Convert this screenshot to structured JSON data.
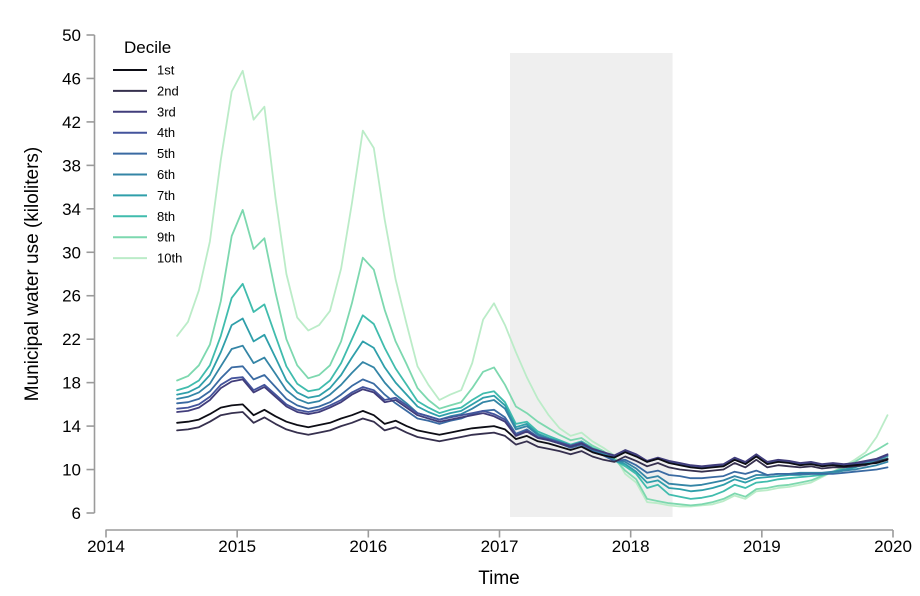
{
  "legend": {
    "title": "Decile"
  },
  "chart_data": {
    "type": "line",
    "title": "",
    "xlabel": "Time",
    "ylabel": "Municipal water use (kiloliters)",
    "xlim": [
      2014,
      2020
    ],
    "ylim": [
      6,
      50
    ],
    "x_ticks": [
      2014,
      2015,
      2016,
      2017,
      2018,
      2019,
      2020
    ],
    "y_ticks": [
      6,
      10,
      14,
      18,
      22,
      26,
      30,
      34,
      38,
      42,
      46,
      50
    ],
    "grid": false,
    "legend_position": "top-left-inside",
    "shaded_region": {
      "x_from": 2017.08,
      "x_to": 2018.32,
      "color": "#efefef"
    },
    "x": [
      2014.542,
      2014.625,
      2014.708,
      2014.792,
      2014.875,
      2014.958,
      2015.042,
      2015.125,
      2015.208,
      2015.292,
      2015.375,
      2015.458,
      2015.542,
      2015.625,
      2015.708,
      2015.792,
      2015.875,
      2015.958,
      2016.042,
      2016.125,
      2016.208,
      2016.292,
      2016.375,
      2016.458,
      2016.542,
      2016.625,
      2016.708,
      2016.792,
      2016.875,
      2016.958,
      2017.042,
      2017.125,
      2017.208,
      2017.292,
      2017.375,
      2017.458,
      2017.542,
      2017.625,
      2017.708,
      2017.792,
      2017.875,
      2017.958,
      2018.042,
      2018.125,
      2018.208,
      2018.292,
      2018.375,
      2018.458,
      2018.542,
      2018.625,
      2018.708,
      2018.792,
      2018.875,
      2018.958,
      2019.042,
      2019.125,
      2019.208,
      2019.292,
      2019.375,
      2019.458,
      2019.542,
      2019.625,
      2019.708,
      2019.792,
      2019.875,
      2019.958
    ],
    "series": [
      {
        "name": "1st",
        "color": "#0d0d15",
        "values": [
          14.3,
          14.4,
          14.6,
          15.1,
          15.7,
          15.9,
          16.0,
          15.0,
          15.5,
          14.9,
          14.4,
          14.1,
          13.9,
          14.1,
          14.3,
          14.7,
          15.0,
          15.4,
          15.0,
          14.2,
          14.5,
          14.0,
          13.6,
          13.4,
          13.2,
          13.4,
          13.6,
          13.8,
          13.9,
          14.0,
          13.7,
          12.8,
          13.1,
          12.6,
          12.4,
          12.1,
          11.8,
          12.1,
          11.6,
          11.3,
          11.1,
          11.6,
          11.2,
          10.7,
          11.0,
          10.6,
          10.4,
          10.2,
          10.1,
          10.2,
          10.3,
          10.9,
          10.5,
          11.2,
          10.5,
          10.7,
          10.6,
          10.4,
          10.5,
          10.3,
          10.4,
          10.3,
          10.4,
          10.5,
          10.6,
          10.9
        ]
      },
      {
        "name": "2nd",
        "color": "#36304e",
        "values": [
          13.6,
          13.7,
          13.9,
          14.4,
          15.0,
          15.2,
          15.3,
          14.3,
          14.8,
          14.2,
          13.7,
          13.4,
          13.2,
          13.4,
          13.6,
          14.0,
          14.3,
          14.7,
          14.4,
          13.6,
          13.9,
          13.4,
          13.0,
          12.8,
          12.6,
          12.8,
          13.0,
          13.2,
          13.3,
          13.4,
          13.1,
          12.3,
          12.6,
          12.1,
          11.9,
          11.7,
          11.4,
          11.7,
          11.2,
          10.9,
          10.7,
          11.2,
          10.8,
          10.3,
          10.6,
          10.2,
          10.0,
          9.9,
          9.8,
          9.9,
          10.0,
          10.6,
          10.2,
          10.9,
          10.2,
          10.4,
          10.3,
          10.2,
          10.3,
          10.1,
          10.2,
          10.2,
          10.3,
          10.4,
          10.7,
          11.0
        ]
      },
      {
        "name": "3rd",
        "color": "#413d7b",
        "values": [
          15.3,
          15.4,
          15.7,
          16.4,
          17.5,
          18.1,
          18.3,
          17.1,
          17.6,
          16.7,
          15.8,
          15.3,
          15.1,
          15.3,
          15.7,
          16.2,
          16.9,
          17.4,
          17.1,
          16.2,
          16.4,
          15.7,
          15.0,
          14.7,
          14.4,
          14.6,
          14.8,
          15.0,
          15.2,
          14.9,
          14.4,
          13.1,
          13.5,
          12.9,
          12.7,
          12.4,
          12.1,
          12.4,
          11.9,
          11.6,
          11.3,
          11.8,
          11.4,
          10.8,
          11.1,
          10.8,
          10.6,
          10.4,
          10.3,
          10.4,
          10.5,
          11.1,
          10.7,
          11.4,
          10.7,
          10.9,
          10.8,
          10.6,
          10.7,
          10.5,
          10.6,
          10.5,
          10.6,
          10.8,
          11.0,
          11.4
        ]
      },
      {
        "name": "4th",
        "color": "#44549c",
        "values": [
          15.6,
          15.7,
          16.0,
          16.7,
          17.8,
          18.4,
          18.5,
          17.3,
          17.8,
          16.9,
          16.0,
          15.5,
          15.3,
          15.5,
          15.9,
          16.4,
          17.1,
          17.6,
          17.3,
          16.4,
          16.6,
          15.9,
          15.2,
          14.9,
          14.6,
          14.8,
          15.0,
          15.2,
          15.4,
          15.1,
          14.6,
          13.2,
          13.6,
          13.0,
          12.8,
          12.5,
          12.2,
          12.5,
          11.9,
          11.6,
          11.2,
          11.7,
          11.3,
          10.7,
          11.0,
          10.7,
          10.5,
          10.3,
          10.2,
          10.3,
          10.4,
          11.0,
          10.6,
          11.3,
          10.6,
          10.8,
          10.7,
          10.5,
          10.6,
          10.4,
          10.5,
          10.4,
          10.5,
          10.7,
          10.9,
          11.3
        ]
      },
      {
        "name": "5th",
        "color": "#3a6aa2",
        "values": [
          16.1,
          16.2,
          16.5,
          17.2,
          18.4,
          19.4,
          19.5,
          18.3,
          18.7,
          17.6,
          16.5,
          15.9,
          15.6,
          15.8,
          16.2,
          16.9,
          17.7,
          18.3,
          17.9,
          16.9,
          16.1,
          15.4,
          14.7,
          14.5,
          14.2,
          14.5,
          14.7,
          15.1,
          15.4,
          15.5,
          14.8,
          13.3,
          13.7,
          13.0,
          12.7,
          12.4,
          12.0,
          12.3,
          11.7,
          11.3,
          10.8,
          10.9,
          10.4,
          9.7,
          9.9,
          9.5,
          9.4,
          9.2,
          9.2,
          9.3,
          9.4,
          9.8,
          9.6,
          9.9,
          9.5,
          9.6,
          9.6,
          9.6,
          9.6,
          9.6,
          9.6,
          9.7,
          9.8,
          9.9,
          10.0,
          10.2
        ]
      },
      {
        "name": "6th",
        "color": "#3485a6",
        "values": [
          16.5,
          16.7,
          17.1,
          17.9,
          19.5,
          21.1,
          21.4,
          19.8,
          20.3,
          18.8,
          17.3,
          16.5,
          16.1,
          16.3,
          16.9,
          17.8,
          18.9,
          19.9,
          19.4,
          18.0,
          16.9,
          16.1,
          15.2,
          14.9,
          14.6,
          14.9,
          15.1,
          15.6,
          16.2,
          16.4,
          15.6,
          13.7,
          14.0,
          13.2,
          12.8,
          12.5,
          12.1,
          12.4,
          11.8,
          11.4,
          10.8,
          10.7,
          10.1,
          9.2,
          9.4,
          8.7,
          8.6,
          8.5,
          8.6,
          8.8,
          9.0,
          9.4,
          9.1,
          9.5,
          9.5,
          9.6,
          9.6,
          9.7,
          9.7,
          9.7,
          9.8,
          9.9,
          10.0,
          10.2,
          10.4,
          10.7
        ]
      },
      {
        "name": "7th",
        "color": "#2f9faa",
        "values": [
          16.9,
          17.1,
          17.6,
          18.7,
          20.8,
          23.3,
          23.9,
          21.8,
          22.4,
          20.3,
          18.2,
          17.1,
          16.6,
          16.8,
          17.5,
          18.7,
          20.3,
          21.8,
          21.2,
          19.4,
          18.0,
          16.9,
          15.8,
          15.3,
          14.9,
          15.2,
          15.4,
          16.0,
          16.6,
          16.8,
          15.9,
          13.9,
          14.2,
          13.3,
          12.9,
          12.6,
          12.2,
          12.5,
          11.9,
          11.5,
          10.8,
          10.5,
          9.8,
          8.8,
          9.0,
          8.3,
          8.2,
          8.0,
          8.1,
          8.3,
          8.6,
          9.1,
          8.8,
          9.2,
          9.3,
          9.4,
          9.5,
          9.5,
          9.6,
          9.6,
          9.8,
          10.0,
          10.2,
          10.5,
          10.8,
          11.0
        ]
      },
      {
        "name": "8th",
        "color": "#40bcad",
        "values": [
          17.3,
          17.6,
          18.2,
          19.6,
          22.3,
          25.8,
          27.1,
          24.5,
          25.2,
          22.3,
          19.5,
          17.9,
          17.2,
          17.4,
          18.2,
          19.8,
          22.0,
          24.2,
          23.4,
          21.2,
          19.3,
          17.8,
          16.3,
          15.7,
          15.2,
          15.5,
          15.7,
          16.4,
          17.0,
          17.2,
          16.2,
          14.2,
          14.4,
          13.5,
          13.1,
          12.7,
          12.3,
          12.6,
          12.0,
          11.6,
          10.9,
          10.3,
          9.6,
          8.3,
          8.6,
          7.7,
          7.5,
          7.3,
          7.4,
          7.6,
          8.0,
          8.6,
          8.3,
          8.8,
          8.9,
          9.1,
          9.2,
          9.3,
          9.4,
          9.5,
          9.7,
          9.9,
          10.2,
          10.6,
          10.9,
          11.2
        ]
      },
      {
        "name": "9th",
        "color": "#7dd8af",
        "values": [
          18.2,
          18.6,
          19.6,
          21.5,
          25.5,
          31.5,
          33.9,
          30.3,
          31.3,
          26.3,
          22.0,
          19.6,
          18.4,
          18.7,
          19.6,
          21.8,
          25.3,
          29.5,
          28.4,
          24.7,
          21.8,
          19.7,
          17.5,
          16.4,
          15.6,
          15.9,
          16.2,
          17.5,
          19.0,
          19.4,
          17.8,
          15.8,
          15.2,
          14.4,
          13.8,
          13.2,
          12.7,
          12.9,
          12.2,
          11.7,
          11.0,
          9.9,
          9.1,
          7.3,
          7.1,
          6.9,
          6.8,
          6.7,
          6.8,
          7.0,
          7.3,
          7.8,
          7.5,
          8.2,
          8.3,
          8.5,
          8.6,
          8.8,
          9.0,
          9.4,
          9.8,
          10.2,
          10.7,
          11.3,
          11.8,
          12.4
        ]
      },
      {
        "name": "10th",
        "color": "#bbecc8",
        "values": [
          22.3,
          23.6,
          26.5,
          31.0,
          38.5,
          44.8,
          46.7,
          42.2,
          43.4,
          35.0,
          28.0,
          24.0,
          22.8,
          23.3,
          24.6,
          28.5,
          34.5,
          41.2,
          39.6,
          33.0,
          27.5,
          23.4,
          19.5,
          17.8,
          16.4,
          16.9,
          17.3,
          19.8,
          23.8,
          25.3,
          23.3,
          20.8,
          18.5,
          16.5,
          15.0,
          13.8,
          13.1,
          13.4,
          12.6,
          12.0,
          11.3,
          9.6,
          8.8,
          7.0,
          6.9,
          6.7,
          6.6,
          6.6,
          6.7,
          6.8,
          7.1,
          7.6,
          7.3,
          8.0,
          8.1,
          8.3,
          8.4,
          8.6,
          8.8,
          9.3,
          9.8,
          10.3,
          10.9,
          11.6,
          13.0,
          15.0
        ]
      }
    ]
  }
}
